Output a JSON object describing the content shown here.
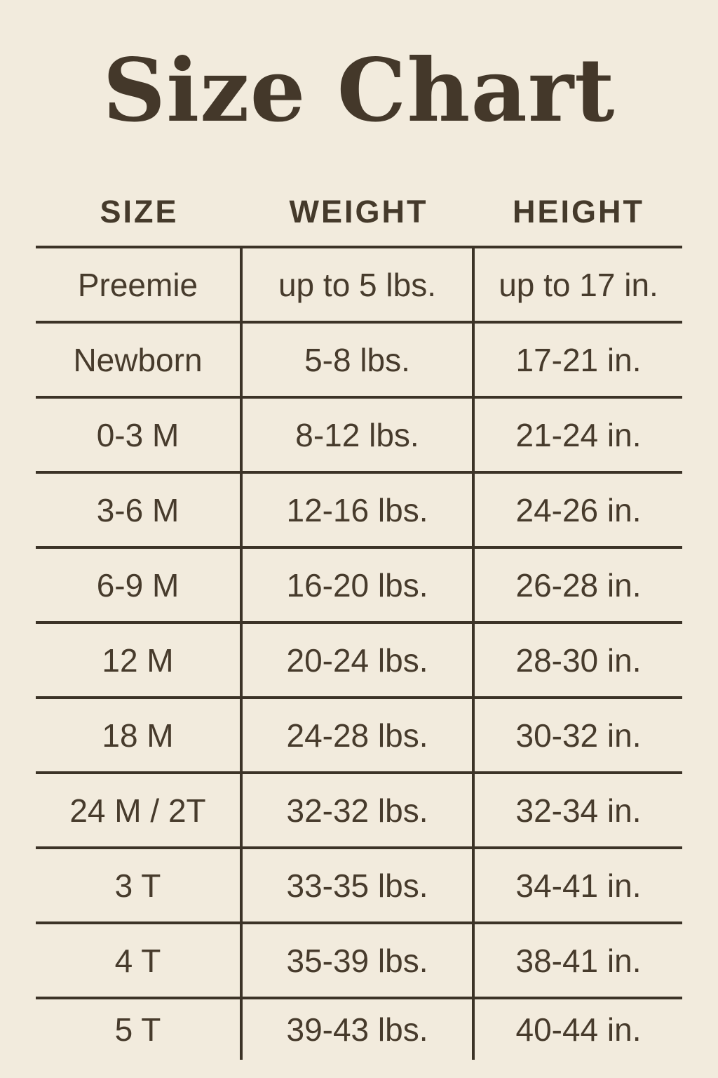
{
  "title": "Size Chart",
  "colors": {
    "background": "#f2ebdd",
    "text": "#473b2c",
    "rules": "#3c3327"
  },
  "table": {
    "headers": {
      "size": "SIZE",
      "weight": "WEIGHT",
      "height": "HEIGHT"
    },
    "rows": [
      {
        "size": "Preemie",
        "weight": "up to 5 lbs.",
        "height": "up to 17 in."
      },
      {
        "size": "Newborn",
        "weight": "5-8 lbs.",
        "height": "17-21 in."
      },
      {
        "size": "0-3 M",
        "weight": "8-12 lbs.",
        "height": "21-24 in."
      },
      {
        "size": "3-6 M",
        "weight": "12-16 lbs.",
        "height": "24-26 in."
      },
      {
        "size": "6-9 M",
        "weight": "16-20 lbs.",
        "height": "26-28 in."
      },
      {
        "size": "12 M",
        "weight": "20-24 lbs.",
        "height": "28-30 in."
      },
      {
        "size": "18 M",
        "weight": "24-28 lbs.",
        "height": "30-32 in."
      },
      {
        "size": "24 M / 2T",
        "weight": "32-32 lbs.",
        "height": "32-34 in."
      },
      {
        "size": "3 T",
        "weight": "33-35 lbs.",
        "height": "34-41 in."
      },
      {
        "size": "4 T",
        "weight": "35-39 lbs.",
        "height": "38-41 in."
      },
      {
        "size": "5 T",
        "weight": "39-43 lbs.",
        "height": "40-44 in."
      }
    ]
  }
}
